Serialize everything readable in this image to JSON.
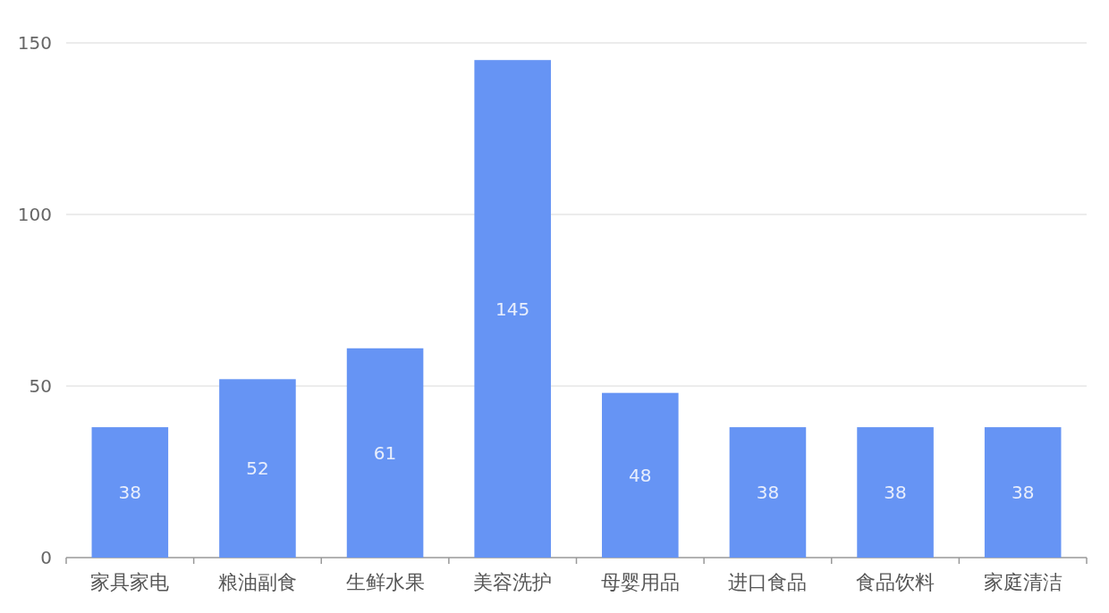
{
  "chart_data": {
    "type": "bar",
    "categories": [
      "家具家电",
      "粮油副食",
      "生鲜水果",
      "美容洗护",
      "母婴用品",
      "进口食品",
      "食品饮料",
      "家庭清洁"
    ],
    "values": [
      38,
      52,
      61,
      145,
      48,
      38,
      38,
      38
    ],
    "color": "#6694f4",
    "ylim": [
      0,
      150
    ],
    "yticks": [
      0,
      50,
      100,
      150
    ],
    "grid": "y",
    "data_labels": true
  }
}
